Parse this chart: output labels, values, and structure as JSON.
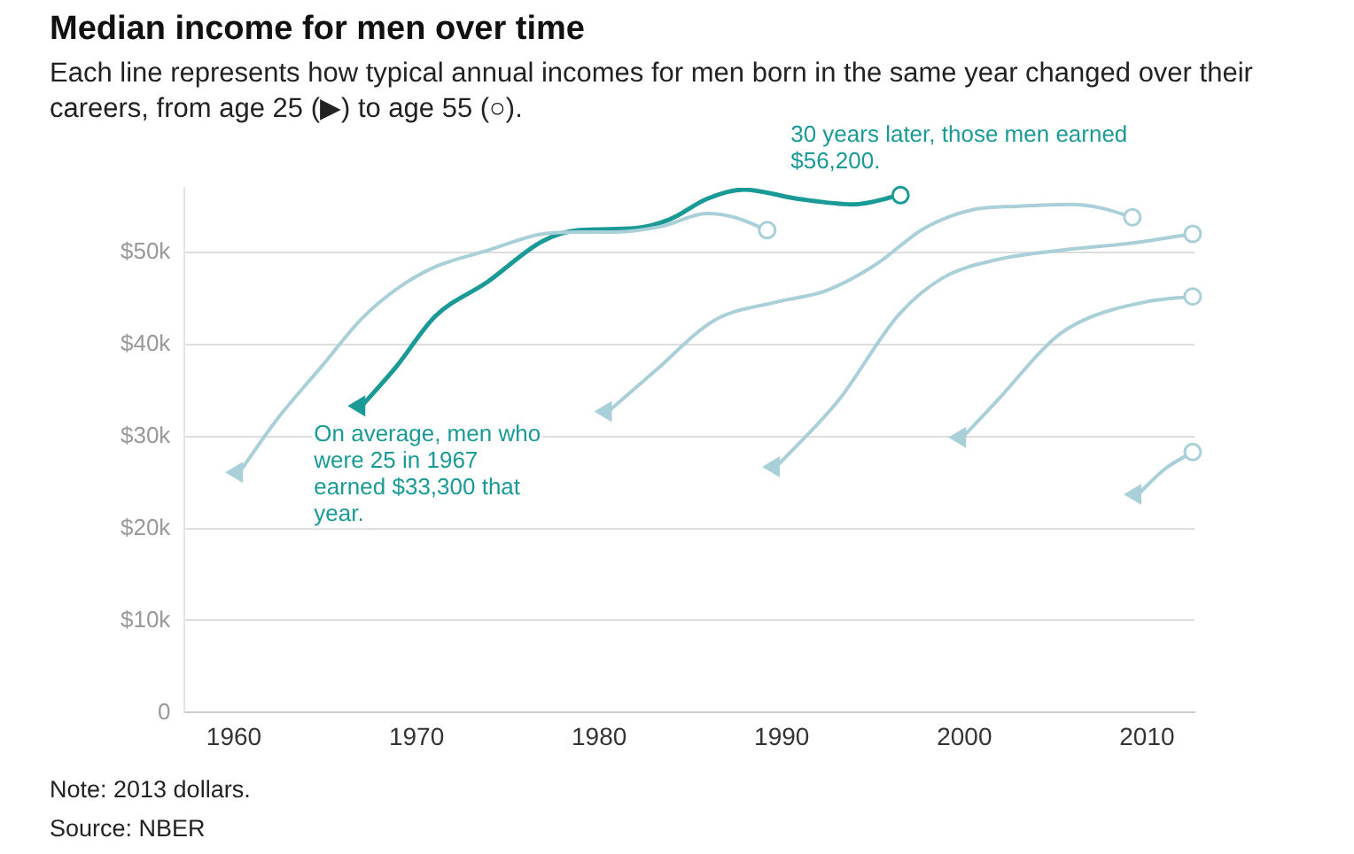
{
  "chart_data": {
    "type": "line",
    "title": "Median income for men over time",
    "subtitle": "Each line represents how typical annual incomes for men born in the same year changed over their careers, from age 25 (▶) to age 55 (○).",
    "series": [
      {
        "color": "#a9cfd8",
        "x": [
          1960.3,
          1962.3,
          1964.8,
          1967,
          1968.9,
          1971,
          1973.9,
          1976.9,
          1978.9,
          1980.9,
          1983.4,
          1985.9,
          1987.4,
          1989.2
        ],
        "values": [
          26100,
          31700,
          37600,
          42800,
          46000,
          48400,
          50200,
          52000,
          52200,
          52200,
          52800,
          54200,
          53800,
          52400
        ]
      },
      {
        "color": "#a9cfd8",
        "x": [
          1980.5,
          1983,
          1986.3,
          1989.7,
          1992.4,
          1995.1,
          1997.8,
          2000.4,
          2003,
          2005.9,
          2007.5,
          2009.2
        ],
        "values": [
          32700,
          37000,
          42600,
          44600,
          45800,
          48600,
          52600,
          54600,
          55000,
          55200,
          54800,
          53800
        ]
      },
      {
        "color": "#a9cfd8",
        "x": [
          1989.7,
          1993.1,
          1996.4,
          1998.8,
          2001.8,
          2005.2,
          2009.2,
          2012.5
        ],
        "values": [
          26700,
          33900,
          43200,
          47200,
          49200,
          50200,
          51000,
          52000
        ]
      },
      {
        "color": "#a9cfd8",
        "x": [
          1999.9,
          2001.8,
          2004.9,
          2006.5,
          2009.9,
          2012.5
        ],
        "values": [
          29900,
          33900,
          40600,
          42600,
          44600,
          45200
        ]
      },
      {
        "color": "#a9cfd8",
        "x": [
          2009.5,
          2011,
          2012.5
        ],
        "values": [
          23700,
          26500,
          28300
        ]
      },
      {
        "color": "#1a9a96",
        "x": [
          1967,
          1968.9,
          1971,
          1973.9,
          1976.9,
          1978.9,
          1981.9,
          1983.9,
          1985.9,
          1987.9,
          1990.9,
          1993.9,
          1996.5
        ],
        "values": [
          33300,
          37600,
          43000,
          46800,
          51200,
          52400,
          52600,
          53600,
          55800,
          56800,
          55800,
          55200,
          56200
        ]
      }
    ],
    "xlim": [
      1957.3,
      2012.6
    ],
    "xticks": [
      1960,
      1970,
      1980,
      1990,
      2000,
      2010
    ],
    "ylim": [
      0,
      57000
    ],
    "yticks": [
      {
        "value": 0,
        "label": "0"
      },
      {
        "value": 10000,
        "label": "$10k"
      },
      {
        "value": 20000,
        "label": "$20k"
      },
      {
        "value": 30000,
        "label": "$30k"
      },
      {
        "value": 40000,
        "label": "$40k"
      },
      {
        "value": 50000,
        "label": "$50k"
      }
    ],
    "grid": "y",
    "legend": false,
    "annotations": [
      {
        "text": "On average, men who were 25 in 1967 earned $33,300 that year.",
        "x": 1967,
        "y": 33300
      },
      {
        "text": "30 years later, those men earned $56,200.",
        "x": 1996.5,
        "y": 56200
      },
      "Note: 2013 dollars.",
      "Source: NBER"
    ]
  }
}
